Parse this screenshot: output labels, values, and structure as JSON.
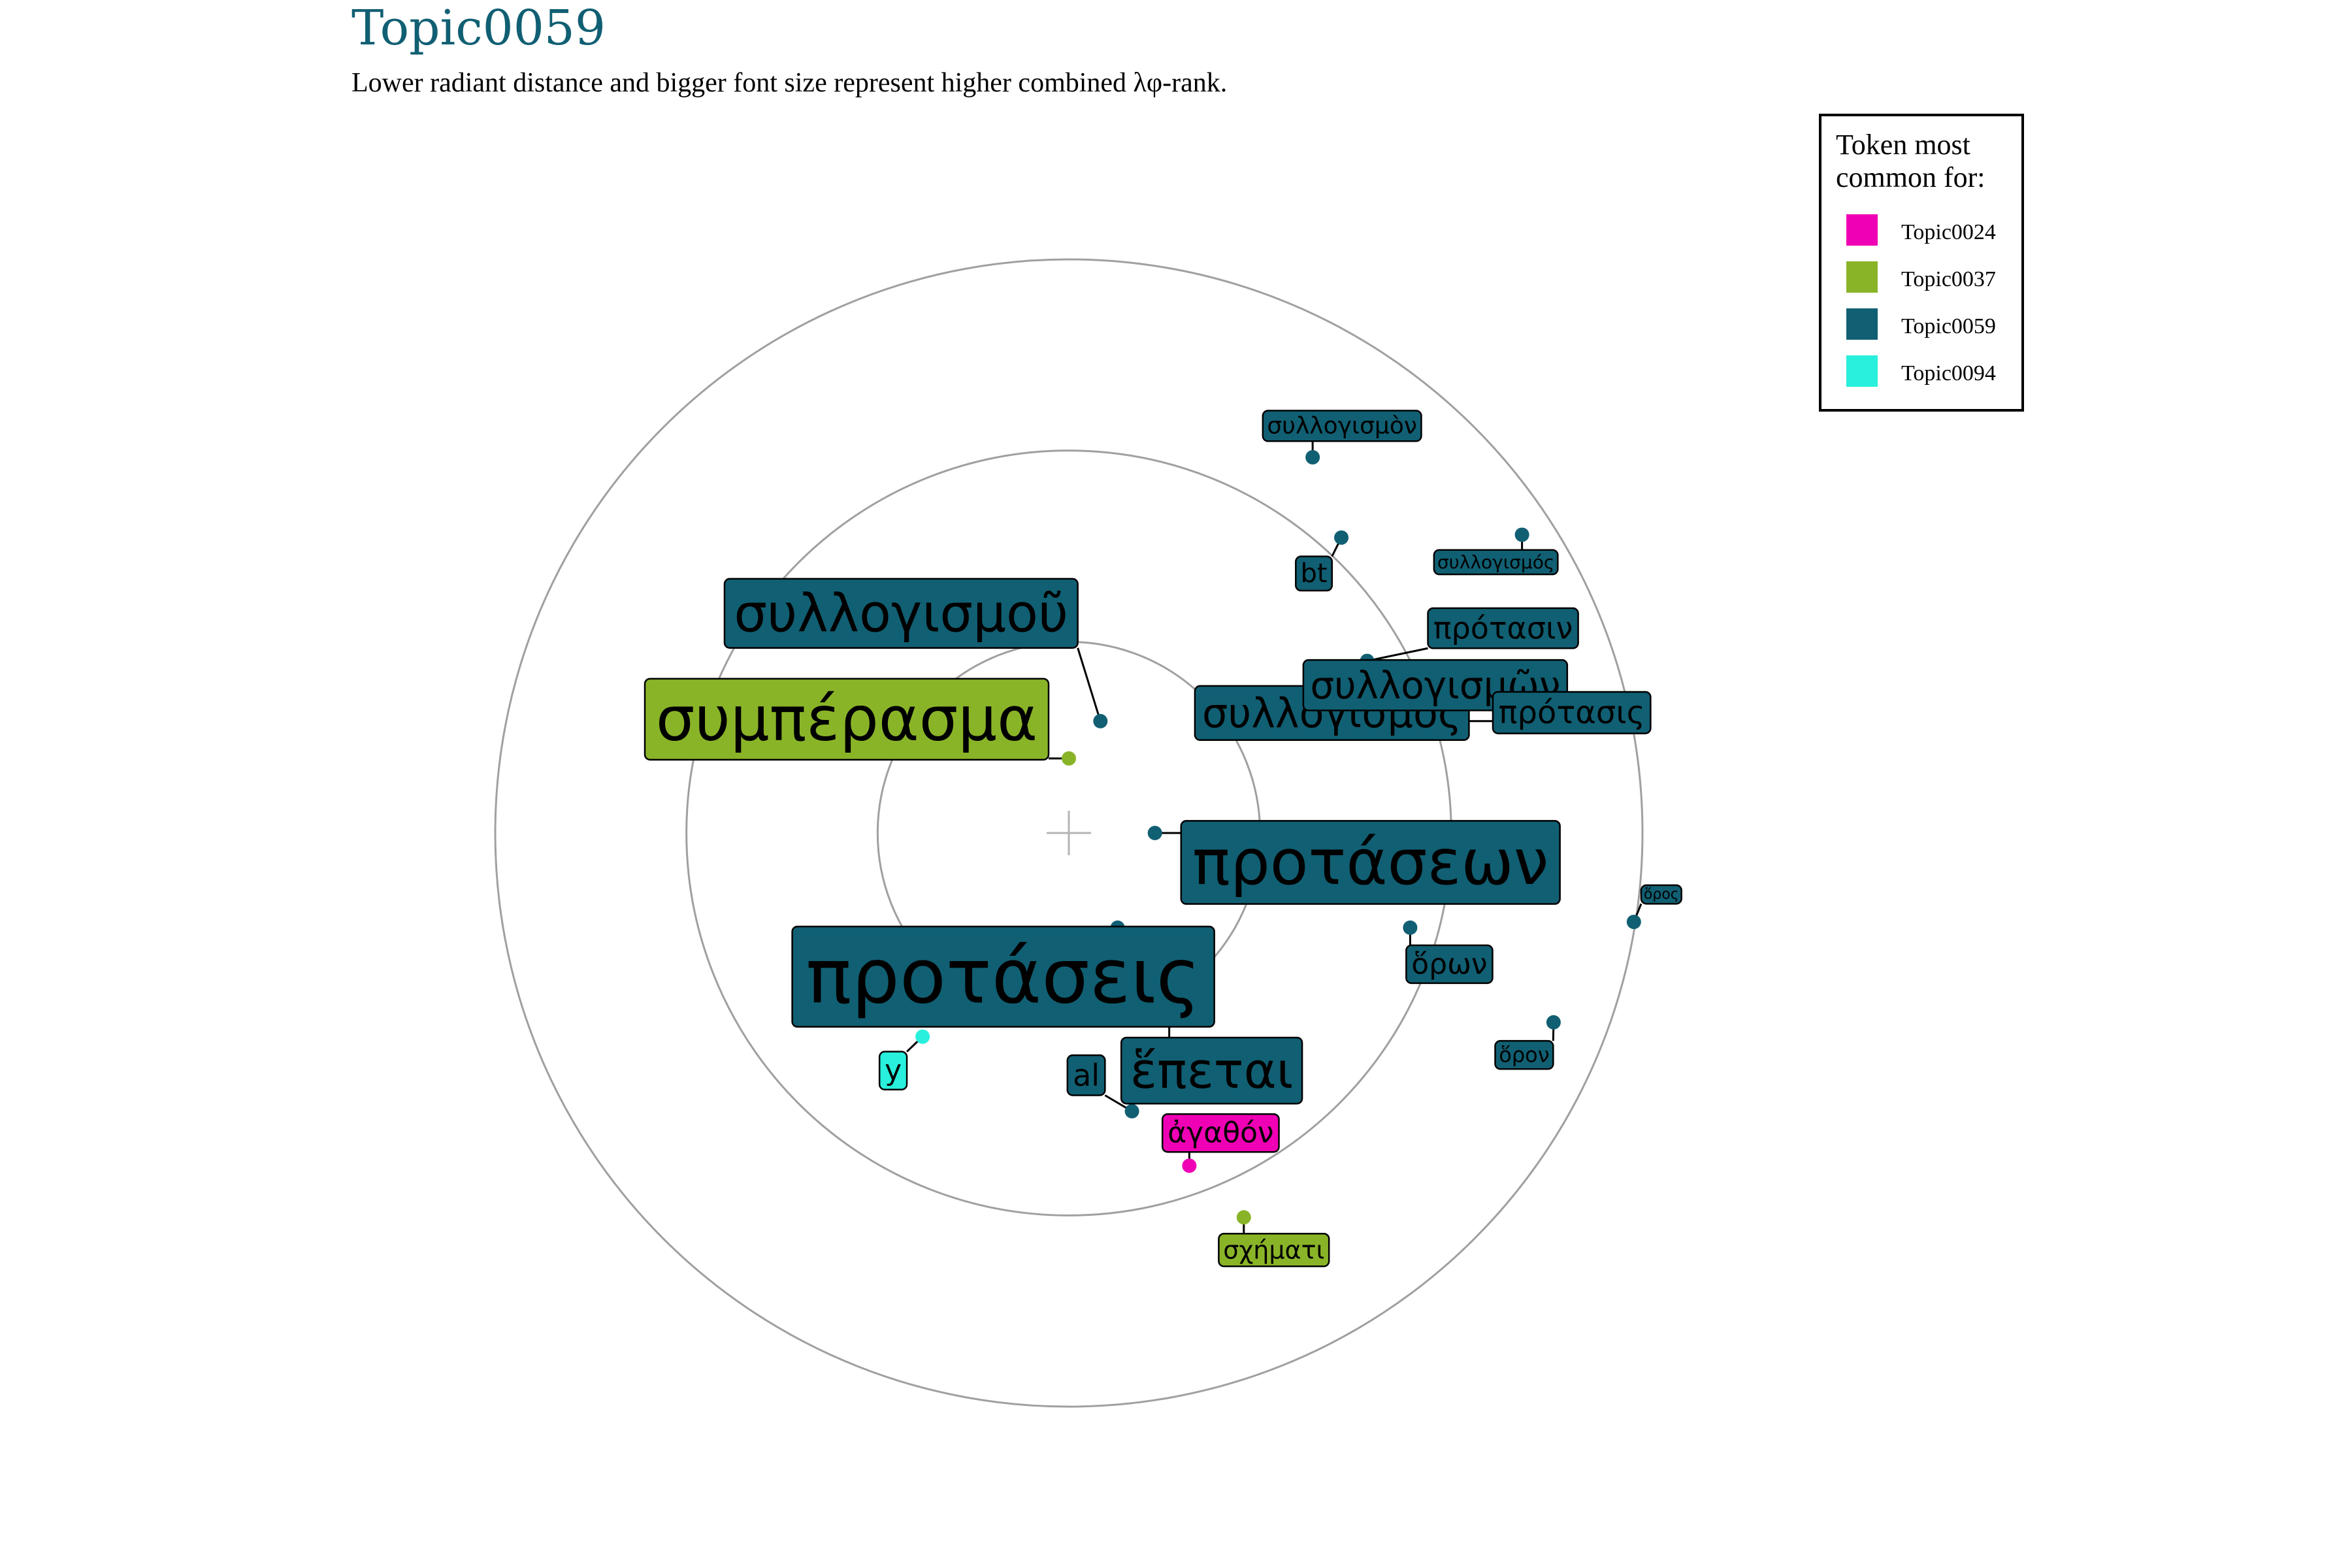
{
  "chart_data": {
    "type": "scatter",
    "title": "Topic0059",
    "subtitle": "Lower radiant distance and bigger font size represent higher combined λφ-rank.",
    "legend": {
      "title_lines": [
        "Token most",
        "common for:"
      ],
      "placement": "top-right",
      "entries": [
        {
          "name": "Topic0024",
          "color": "#f000b4"
        },
        {
          "name": "Topic0037",
          "color": "#8ab428"
        },
        {
          "name": "Topic0059",
          "color": "#115f73"
        },
        {
          "name": "Topic0094",
          "color": "#28f0dc"
        }
      ]
    },
    "grid": {
      "rings": 3,
      "center_marker": true
    },
    "tokens": [
      {
        "label": "προτάσεις",
        "topic": "Topic0059",
        "x": 0.085,
        "y": -0.165,
        "rank": 1
      },
      {
        "label": "συμπέρασμα",
        "topic": "Topic0037",
        "x": 0.0,
        "y": 0.13,
        "rank": 2
      },
      {
        "label": "προτάσεων",
        "topic": "Topic0059",
        "x": 0.15,
        "y": 0.0,
        "rank": 3
      },
      {
        "label": "συλλογισμοῦ",
        "topic": "Topic0059",
        "x": 0.055,
        "y": 0.195,
        "rank": 4
      },
      {
        "label": "ἕπεται",
        "topic": "Topic0059",
        "x": 0.175,
        "y": -0.175,
        "rank": 5
      },
      {
        "label": "συλλογισμὸς",
        "topic": "Topic0059",
        "x": 0.265,
        "y": 0.175,
        "rank": 6
      },
      {
        "label": "συλλογισμῶν",
        "topic": "Topic0059",
        "x": 0.37,
        "y": 0.195,
        "rank": 7
      },
      {
        "label": "πρότασις",
        "topic": "Topic0059",
        "x": 0.56,
        "y": 0.195,
        "rank": 8
      },
      {
        "label": "πρότασιν",
        "topic": "Topic0059",
        "x": 0.52,
        "y": 0.3,
        "rank": 9
      },
      {
        "label": "al",
        "topic": "Topic0059",
        "x": 0.11,
        "y": -0.485,
        "rank": 10
      },
      {
        "label": "ἀγαθόν",
        "topic": "Topic0024",
        "x": 0.21,
        "y": -0.58,
        "rank": 11
      },
      {
        "label": "ὅρων",
        "topic": "Topic0059",
        "x": 0.595,
        "y": -0.165,
        "rank": 12
      },
      {
        "label": "y",
        "topic": "Topic0094",
        "x": -0.255,
        "y": -0.355,
        "rank": 13
      },
      {
        "label": "bt",
        "topic": "Topic0059",
        "x": 0.475,
        "y": 0.515,
        "rank": 14
      },
      {
        "label": "σχήματι",
        "topic": "Topic0037",
        "x": 0.305,
        "y": -0.67,
        "rank": 15
      },
      {
        "label": "συλλογισμὸν",
        "topic": "Topic0059",
        "x": 0.425,
        "y": 0.655,
        "rank": 16
      },
      {
        "label": "ὅρον",
        "topic": "Topic0059",
        "x": 0.845,
        "y": -0.33,
        "rank": 17
      },
      {
        "label": "συλλογισμός",
        "topic": "Topic0059",
        "x": 0.79,
        "y": 0.52,
        "rank": 18
      },
      {
        "label": "ὅρος",
        "topic": "Topic0059",
        "x": 0.985,
        "y": -0.155,
        "rank": 19
      }
    ]
  }
}
